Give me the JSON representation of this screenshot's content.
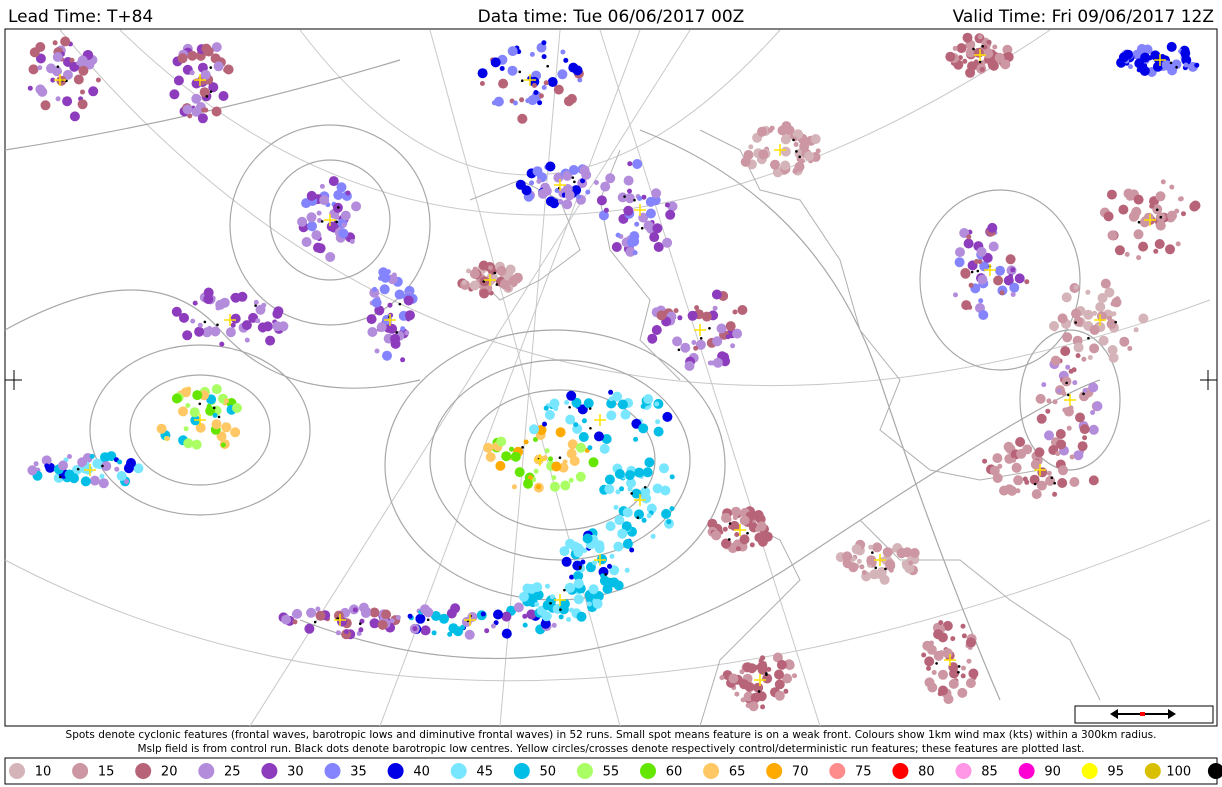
{
  "header": {
    "lead_time": "Lead Time: T+84",
    "data_time": "Data time:  Tue 06/06/2017 00Z",
    "valid_time": "Valid Time: Fri 09/06/2017 12Z"
  },
  "caption": [
    "Spots denote cyclonic features (frontal waves, barotropic lows and diminutive frontal waves) in 52 runs. Small spot means feature is on a weak front. Colours show 1km wind max (kts) within a 300km radius.",
    "Mslp field is from control run. Black dots denote barotropic low centres. Yellow circles/crosses denote respectively control/deterministic run features; these features are plotted last."
  ],
  "legend": {
    "items": [
      {
        "label": 10,
        "color": "#d4b4b8"
      },
      {
        "label": 15,
        "color": "#cc96a2"
      },
      {
        "label": 20,
        "color": "#b86478"
      },
      {
        "label": 25,
        "color": "#b48cdc"
      },
      {
        "label": 30,
        "color": "#8c3cbc"
      },
      {
        "label": 35,
        "color": "#8484ff"
      },
      {
        "label": 40,
        "color": "#0000e6"
      },
      {
        "label": 45,
        "color": "#78e6ff"
      },
      {
        "label": 50,
        "color": "#00bee6"
      },
      {
        "label": 55,
        "color": "#aaff64"
      },
      {
        "label": 60,
        "color": "#64e600"
      },
      {
        "label": 65,
        "color": "#ffc864"
      },
      {
        "label": 70,
        "color": "#ffaa00"
      },
      {
        "label": 75,
        "color": "#ff8c8c"
      },
      {
        "label": 80,
        "color": "#ff0000"
      },
      {
        "label": 85,
        "color": "#ff96e6"
      },
      {
        "label": 90,
        "color": "#ff00d2"
      },
      {
        "label": 95,
        "color": "#ffff00"
      },
      {
        "label": 100,
        "color": "#d8c000"
      },
      {
        "label": null,
        "color": "#000000"
      }
    ]
  }
}
